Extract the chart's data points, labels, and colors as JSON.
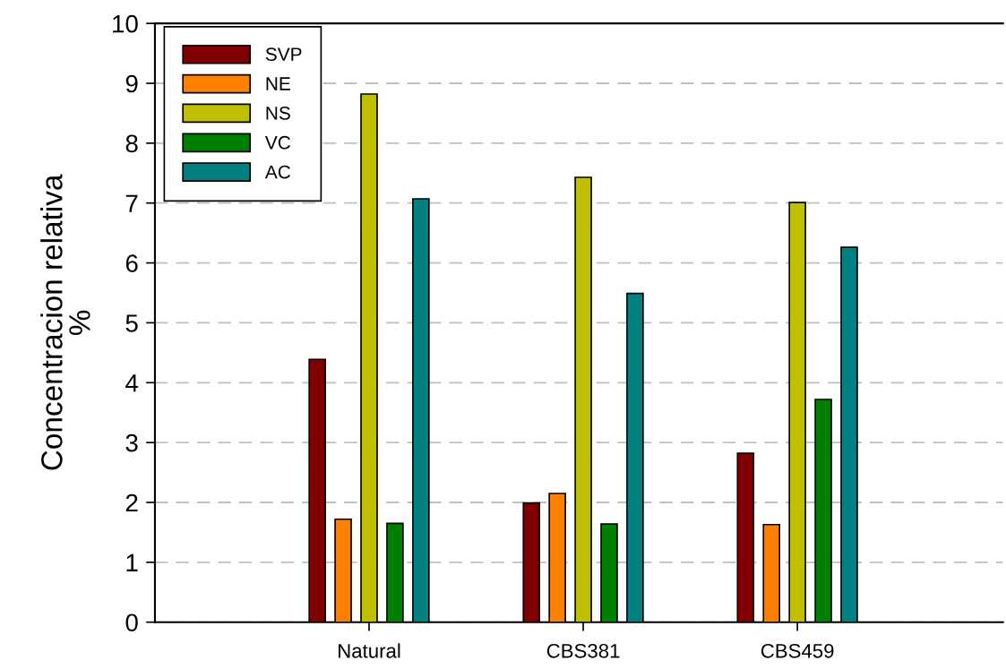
{
  "chart_data": {
    "type": "bar",
    "ylabel": "Concentracion relativa\n%",
    "categories": [
      "Natural",
      "CBS381",
      "CBS459"
    ],
    "series": [
      {
        "name": "SVP",
        "color": "#800000",
        "values": [
          4.39,
          1.99,
          2.82
        ]
      },
      {
        "name": "NE",
        "color": "#ff8000",
        "values": [
          1.72,
          2.15,
          1.63
        ]
      },
      {
        "name": "NS",
        "color": "#c0c000",
        "values": [
          8.82,
          7.43,
          7.01
        ]
      },
      {
        "name": "VC",
        "color": "#008000",
        "values": [
          1.65,
          1.64,
          3.72
        ]
      },
      {
        "name": "AC",
        "color": "#008080",
        "values": [
          7.07,
          5.49,
          6.26
        ]
      }
    ],
    "ylim": [
      0,
      10
    ],
    "yticks": [
      0,
      1,
      2,
      3,
      4,
      5,
      6,
      7,
      8,
      9,
      10
    ],
    "grid": "y",
    "legend": "top left"
  }
}
